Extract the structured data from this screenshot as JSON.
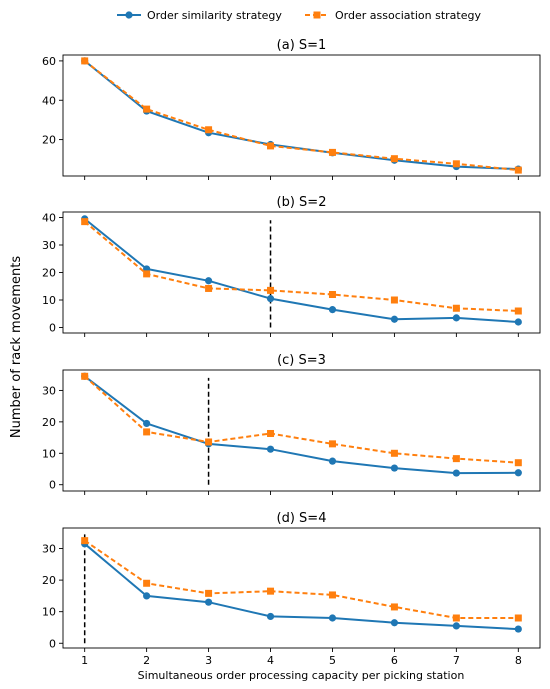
{
  "legend": {
    "placement": "top-center",
    "items": [
      {
        "label": "Order similarity strategy",
        "color": "#1f77b4",
        "marker": "circle",
        "dash": "solid"
      },
      {
        "label": "Order association strategy",
        "color": "#ff7f0e",
        "marker": "square",
        "dash": "dashed"
      }
    ]
  },
  "chart_data": [
    {
      "type": "line",
      "title": "(a) S=1",
      "x": [
        1,
        2,
        3,
        4,
        5,
        6,
        7,
        8
      ],
      "xlim": [
        0.65,
        8.35
      ],
      "ylim": [
        1.5,
        63
      ],
      "yticks": [
        20,
        40,
        60
      ],
      "grid": false,
      "series": [
        {
          "name": "Order similarity strategy",
          "values": [
            60,
            34.5,
            23.5,
            17.5,
            13.3,
            9.5,
            6.3,
            5
          ]
        },
        {
          "name": "Order association strategy",
          "values": [
            60,
            35.5,
            25,
            16.8,
            13.5,
            10.3,
            7.7,
            4.5
          ]
        }
      ]
    },
    {
      "type": "line",
      "title": "(b) S=2",
      "x": [
        1,
        2,
        3,
        4,
        5,
        6,
        7,
        8
      ],
      "xlim": [
        0.65,
        8.35
      ],
      "ylim": [
        -2,
        42
      ],
      "yticks": [
        0,
        10,
        20,
        30,
        40
      ],
      "grid": false,
      "vline": {
        "x": 4,
        "y": [
          0,
          39
        ]
      },
      "series": [
        {
          "name": "Order similarity strategy",
          "values": [
            39.5,
            21.3,
            17,
            10.5,
            6.5,
            3,
            3.5,
            2
          ]
        },
        {
          "name": "Order association strategy",
          "values": [
            38.5,
            19.5,
            14.2,
            13.5,
            12,
            10,
            7,
            6
          ]
        }
      ]
    },
    {
      "type": "line",
      "title": "(c) S=3",
      "x": [
        1,
        2,
        3,
        4,
        5,
        6,
        7,
        8
      ],
      "xlim": [
        0.65,
        8.35
      ],
      "ylim": [
        -2,
        36.5
      ],
      "yticks": [
        0,
        10,
        20,
        30
      ],
      "grid": false,
      "vline": {
        "x": 3,
        "y": [
          0,
          34
        ]
      },
      "series": [
        {
          "name": "Order similarity strategy",
          "values": [
            34.5,
            19.5,
            13,
            11.3,
            7.5,
            5.3,
            3.7,
            3.8
          ]
        },
        {
          "name": "Order association strategy",
          "values": [
            34.5,
            16.8,
            13.6,
            16.3,
            13,
            10,
            8.3,
            7
          ]
        }
      ]
    },
    {
      "type": "line",
      "title": "(d) S=4",
      "x": [
        1,
        2,
        3,
        4,
        5,
        6,
        7,
        8
      ],
      "xlim": [
        0.65,
        8.35
      ],
      "ylim": [
        -1.5,
        36.5
      ],
      "yticks": [
        0,
        10,
        20,
        30
      ],
      "grid": false,
      "vline": {
        "x": 1,
        "y": [
          0,
          34.5
        ]
      },
      "series": [
        {
          "name": "Order similarity strategy",
          "values": [
            31.5,
            15,
            13,
            8.5,
            8,
            6.5,
            5.5,
            4.5
          ]
        },
        {
          "name": "Order association strategy",
          "values": [
            32.5,
            19,
            15.8,
            16.5,
            15.3,
            11.5,
            8,
            8
          ]
        }
      ]
    }
  ],
  "xlabel": "Simultaneous order processing capacity per picking station",
  "ylabel": "Number of rack movements",
  "xticks": [
    "1",
    "2",
    "3",
    "4",
    "5",
    "6",
    "7",
    "8"
  ]
}
